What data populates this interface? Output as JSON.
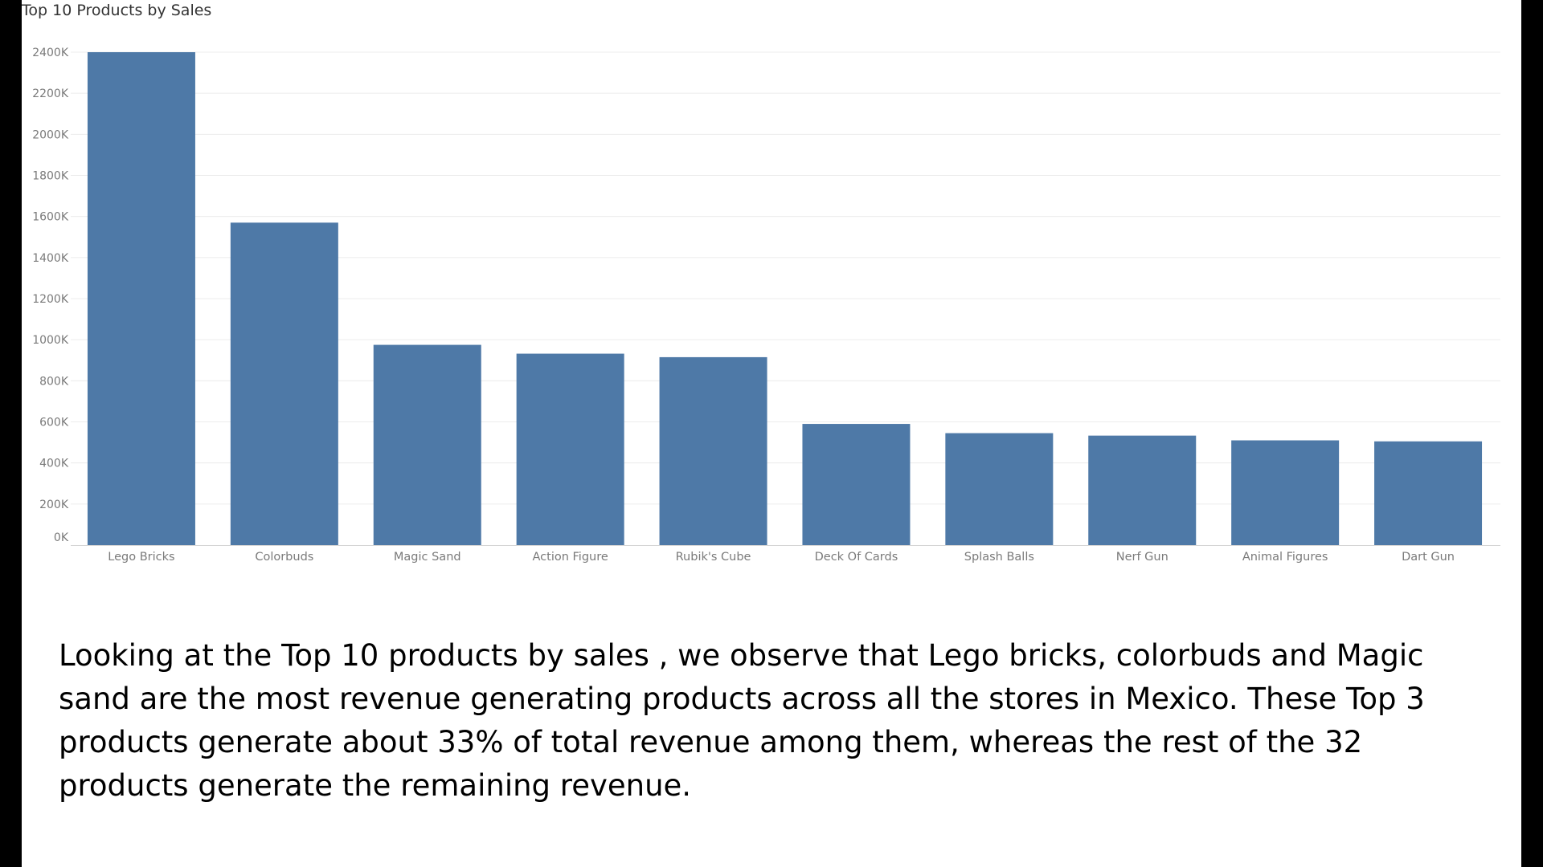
{
  "colors": {
    "bar": "#4e79a7",
    "grid": "#ececec",
    "tick_text": "#7a7a7a",
    "title_text": "#333333",
    "axis_line": "#d4d4d4"
  },
  "chart_data": {
    "type": "bar",
    "title": "Top 10 Products by Sales",
    "xlabel": "",
    "ylabel": "",
    "ylim": [
      0,
      2400
    ],
    "y_ticks": [
      0,
      200,
      400,
      600,
      800,
      1000,
      1200,
      1400,
      1600,
      1800,
      2000,
      2200,
      2400
    ],
    "y_tick_labels": [
      "0K",
      "200K",
      "400K",
      "600K",
      "800K",
      "1000K",
      "1200K",
      "1400K",
      "1600K",
      "1800K",
      "2000K",
      "2200K",
      "2400K"
    ],
    "y_unit": "K",
    "grid": true,
    "legend": "none",
    "categories": [
      "Lego Bricks",
      "Colorbuds",
      "Magic Sand",
      "Action Figure",
      "Rubik's Cube",
      "Deck Of Cards",
      "Splash Balls",
      "Nerf Gun",
      "Animal Figures",
      "Dart Gun"
    ],
    "values": [
      2400,
      1570,
      975,
      932,
      915,
      590,
      545,
      533,
      510,
      505
    ]
  },
  "caption": {
    "text": "Looking at the Top 10 products by sales , we observe that Lego bricks, colorbuds and Magic sand are the most revenue generating products across all the stores in Mexico. These Top 3 products generate about 33% of total revenue among them, whereas the rest of the 32 products generate the remaining revenue."
  }
}
